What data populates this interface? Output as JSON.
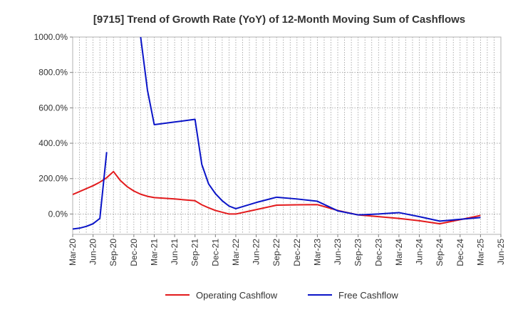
{
  "chart_data": {
    "type": "line",
    "title": "[9715]  Trend of Growth Rate (YoY) of 12-Month Moving Sum of Cashflows",
    "xlabel": "",
    "ylabel": "",
    "x_range": [
      "2020-03",
      "2025-06"
    ],
    "ylim": [
      -115,
      1000
    ],
    "y_ticks": [
      0,
      200,
      400,
      600,
      800,
      1000
    ],
    "y_tick_labels": [
      "0.0%",
      "200.0%",
      "400.0%",
      "600.0%",
      "800.0%",
      "1000.0%"
    ],
    "x_ticks": [
      "2020-03",
      "2020-06",
      "2020-09",
      "2020-12",
      "2021-03",
      "2021-06",
      "2021-09",
      "2021-12",
      "2022-03",
      "2022-06",
      "2022-09",
      "2022-12",
      "2023-03",
      "2023-06",
      "2023-09",
      "2023-12",
      "2024-03",
      "2024-06",
      "2024-09",
      "2024-12",
      "2025-03",
      "2025-06"
    ],
    "x_tick_labels": [
      "Mar-20",
      "Jun-20",
      "Sep-20",
      "Dec-20",
      "Mar-21",
      "Jun-21",
      "Sep-21",
      "Dec-21",
      "Mar-22",
      "Jun-22",
      "Sep-22",
      "Dec-22",
      "Mar-23",
      "Jun-23",
      "Sep-23",
      "Dec-23",
      "Mar-24",
      "Jun-24",
      "Sep-24",
      "Dec-24",
      "Mar-25",
      "Jun-25"
    ],
    "grid": true,
    "legend_position": "bottom-center",
    "series": [
      {
        "name": "Operating Cashflow",
        "color": "#e31a1c",
        "points": [
          [
            "2020-03",
            110
          ],
          [
            "2020-06",
            160
          ],
          [
            "2020-07",
            180
          ],
          [
            "2020-08",
            205
          ],
          [
            "2020-09",
            240
          ],
          [
            "2020-10",
            190
          ],
          [
            "2020-11",
            155
          ],
          [
            "2020-12",
            130
          ],
          [
            "2021-01",
            112
          ],
          [
            "2021-02",
            100
          ],
          [
            "2021-03",
            93
          ],
          [
            "2021-06",
            85
          ],
          [
            "2021-09",
            75
          ],
          [
            "2021-10",
            52
          ],
          [
            "2021-11",
            35
          ],
          [
            "2021-12",
            20
          ],
          [
            "2022-01",
            10
          ],
          [
            "2022-02",
            0
          ],
          [
            "2022-03",
            0
          ],
          [
            "2022-06",
            25
          ],
          [
            "2022-09",
            50
          ],
          [
            "2022-12",
            52
          ],
          [
            "2023-03",
            53
          ],
          [
            "2023-06",
            20
          ],
          [
            "2023-09",
            -5
          ],
          [
            "2023-12",
            -15
          ],
          [
            "2024-03",
            -25
          ],
          [
            "2024-06",
            -38
          ],
          [
            "2024-09",
            -55
          ],
          [
            "2024-12",
            -32
          ],
          [
            "2025-03",
            -8
          ]
        ]
      },
      {
        "name": "Free Cashflow",
        "color": "#0a14c8",
        "segments": [
          [
            [
              "2020-03",
              -85
            ],
            [
              "2020-04",
              -80
            ],
            [
              "2020-05",
              -70
            ],
            [
              "2020-06",
              -55
            ],
            [
              "2020-07",
              -25
            ],
            [
              "2020-08",
              350
            ]
          ],
          [
            [
              "2021-01",
              1000
            ],
            [
              "2021-02",
              700
            ],
            [
              "2021-03",
              505
            ],
            [
              "2021-06",
              520
            ],
            [
              "2021-09",
              535
            ],
            [
              "2021-10",
              280
            ],
            [
              "2021-11",
              170
            ],
            [
              "2021-12",
              115
            ],
            [
              "2022-01",
              75
            ],
            [
              "2022-02",
              45
            ],
            [
              "2022-03",
              30
            ],
            [
              "2022-06",
              65
            ],
            [
              "2022-09",
              95
            ],
            [
              "2022-12",
              85
            ],
            [
              "2023-03",
              72
            ],
            [
              "2023-06",
              18
            ],
            [
              "2023-09",
              -5
            ],
            [
              "2023-12",
              0
            ],
            [
              "2024-03",
              8
            ],
            [
              "2024-06",
              -15
            ],
            [
              "2024-09",
              -40
            ],
            [
              "2024-12",
              -30
            ],
            [
              "2025-03",
              -20
            ]
          ]
        ]
      }
    ]
  }
}
